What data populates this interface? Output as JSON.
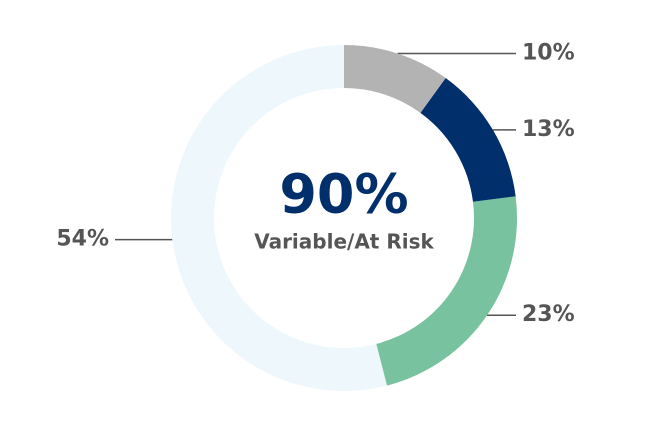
{
  "chart_data": {
    "type": "donut",
    "center_value": "90%",
    "center_label": "Variable/At Risk",
    "categories": [
      null,
      null,
      null,
      null
    ],
    "values": [
      10,
      13,
      23,
      54
    ],
    "value_labels": [
      "10%",
      "13%",
      "23%",
      "54%"
    ],
    "colors": [
      "#b3b3b3",
      "#002f6c",
      "#78c29f",
      "#eef7fc"
    ]
  }
}
